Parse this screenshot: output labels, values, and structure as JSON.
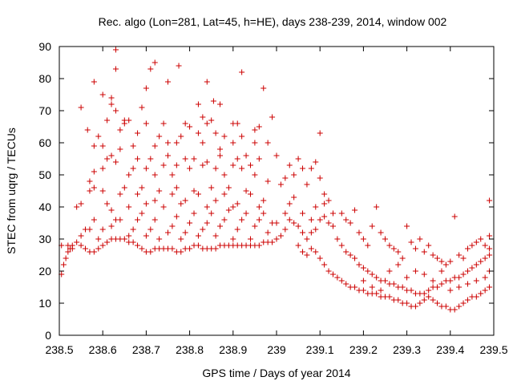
{
  "chart_data": {
    "type": "scatter",
    "title": "Rec. algo (Lon=281, Lat=45, h=HE), days 238-239, 2014, window 002",
    "xlabel": "GPS time / Days of year 2014",
    "ylabel": "STEC from uqrg / TECUs",
    "xlim": [
      238.5,
      239.5
    ],
    "ylim": [
      0,
      90
    ],
    "x_ticks": [
      238.5,
      238.6,
      238.7,
      238.8,
      238.9,
      239.0,
      239.1,
      239.2,
      239.3,
      239.4,
      239.5
    ],
    "x_tick_labels": [
      "238.5",
      "238.6",
      "238.7",
      "238.8",
      "238.9",
      "239",
      "239.1",
      "239.2",
      "239.3",
      "239.4",
      "239.5"
    ],
    "y_ticks": [
      0,
      10,
      20,
      30,
      40,
      50,
      60,
      70,
      80,
      90
    ],
    "y_tick_labels": [
      "0",
      "10",
      "20",
      "30",
      "40",
      "50",
      "60",
      "70",
      "80",
      "90"
    ],
    "grid": false,
    "legend": "none",
    "marker": "plus",
    "color": "#cc0000",
    "points": [
      [
        238.505,
        19
      ],
      [
        238.51,
        22
      ],
      [
        238.515,
        24
      ],
      [
        238.52,
        26
      ],
      [
        238.525,
        27
      ],
      [
        238.53,
        28
      ],
      [
        238.54,
        29
      ],
      [
        238.55,
        28
      ],
      [
        238.56,
        27
      ],
      [
        238.57,
        26
      ],
      [
        238.58,
        26
      ],
      [
        238.59,
        27
      ],
      [
        238.6,
        28
      ],
      [
        238.61,
        29
      ],
      [
        238.62,
        30
      ],
      [
        238.63,
        30
      ],
      [
        238.64,
        30
      ],
      [
        238.65,
        30
      ],
      [
        238.66,
        29
      ],
      [
        238.67,
        29
      ],
      [
        238.68,
        28
      ],
      [
        238.69,
        27
      ],
      [
        238.7,
        26
      ],
      [
        238.71,
        26
      ],
      [
        238.72,
        27
      ],
      [
        238.73,
        27
      ],
      [
        238.74,
        27
      ],
      [
        238.75,
        27
      ],
      [
        238.76,
        27
      ],
      [
        238.77,
        26
      ],
      [
        238.78,
        26
      ],
      [
        238.79,
        27
      ],
      [
        238.8,
        27
      ],
      [
        238.81,
        28
      ],
      [
        238.82,
        28
      ],
      [
        238.83,
        27
      ],
      [
        238.84,
        27
      ],
      [
        238.85,
        27
      ],
      [
        238.86,
        27
      ],
      [
        238.87,
        28
      ],
      [
        238.88,
        28
      ],
      [
        238.89,
        28
      ],
      [
        238.9,
        28
      ],
      [
        238.91,
        28
      ],
      [
        238.92,
        28
      ],
      [
        238.93,
        28
      ],
      [
        238.94,
        28
      ],
      [
        238.95,
        28
      ],
      [
        238.96,
        28
      ],
      [
        238.97,
        29
      ],
      [
        238.98,
        29
      ],
      [
        238.99,
        29
      ],
      [
        238.505,
        28
      ],
      [
        238.52,
        28
      ],
      [
        238.53,
        27
      ],
      [
        238.55,
        31
      ],
      [
        238.56,
        33
      ],
      [
        238.57,
        33
      ],
      [
        238.58,
        36
      ],
      [
        238.59,
        30
      ],
      [
        238.6,
        33
      ],
      [
        238.62,
        34
      ],
      [
        238.63,
        36
      ],
      [
        238.64,
        36
      ],
      [
        238.66,
        31
      ],
      [
        238.67,
        33
      ],
      [
        238.68,
        36
      ],
      [
        238.69,
        38
      ],
      [
        238.7,
        31
      ],
      [
        238.71,
        33
      ],
      [
        238.72,
        36
      ],
      [
        238.73,
        30
      ],
      [
        238.75,
        32
      ],
      [
        238.76,
        34
      ],
      [
        238.77,
        37
      ],
      [
        238.78,
        30
      ],
      [
        238.79,
        32
      ],
      [
        238.8,
        35
      ],
      [
        238.81,
        38
      ],
      [
        238.82,
        31
      ],
      [
        238.83,
        33
      ],
      [
        238.84,
        35
      ],
      [
        238.85,
        38
      ],
      [
        238.86,
        31
      ],
      [
        238.87,
        34
      ],
      [
        238.88,
        36
      ],
      [
        238.89,
        39
      ],
      [
        238.9,
        30
      ],
      [
        238.91,
        33
      ],
      [
        238.92,
        36
      ],
      [
        238.93,
        38
      ],
      [
        238.94,
        30
      ],
      [
        238.95,
        34
      ],
      [
        238.96,
        36
      ],
      [
        238.97,
        38
      ],
      [
        238.98,
        32
      ],
      [
        238.99,
        35
      ],
      [
        238.54,
        40
      ],
      [
        238.55,
        41
      ],
      [
        238.57,
        45
      ],
      [
        238.58,
        46
      ],
      [
        238.6,
        45
      ],
      [
        238.61,
        41
      ],
      [
        238.62,
        39
      ],
      [
        238.64,
        44
      ],
      [
        238.65,
        46
      ],
      [
        238.66,
        40
      ],
      [
        238.68,
        44
      ],
      [
        238.69,
        46
      ],
      [
        238.7,
        41
      ],
      [
        238.72,
        42
      ],
      [
        238.73,
        45
      ],
      [
        238.74,
        40
      ],
      [
        238.76,
        44
      ],
      [
        238.77,
        46
      ],
      [
        238.78,
        41
      ],
      [
        238.79,
        42
      ],
      [
        238.81,
        45
      ],
      [
        238.82,
        44
      ],
      [
        238.84,
        40
      ],
      [
        238.85,
        46
      ],
      [
        238.86,
        42
      ],
      [
        238.88,
        44
      ],
      [
        238.89,
        46
      ],
      [
        238.9,
        40
      ],
      [
        238.91,
        41
      ],
      [
        238.93,
        45
      ],
      [
        238.94,
        44
      ],
      [
        238.96,
        40
      ],
      [
        238.97,
        42
      ],
      [
        238.57,
        48
      ],
      [
        238.58,
        51
      ],
      [
        238.6,
        52
      ],
      [
        238.61,
        55
      ],
      [
        238.62,
        56
      ],
      [
        238.63,
        54
      ],
      [
        238.64,
        58
      ],
      [
        238.66,
        50
      ],
      [
        238.67,
        52
      ],
      [
        238.68,
        55
      ],
      [
        238.7,
        52
      ],
      [
        238.71,
        55
      ],
      [
        238.72,
        50
      ],
      [
        238.74,
        53
      ],
      [
        238.75,
        56
      ],
      [
        238.76,
        50
      ],
      [
        238.77,
        53
      ],
      [
        238.79,
        55
      ],
      [
        238.8,
        52
      ],
      [
        238.81,
        55
      ],
      [
        238.83,
        53
      ],
      [
        238.84,
        54
      ],
      [
        238.86,
        52
      ],
      [
        238.87,
        56
      ],
      [
        238.88,
        50
      ],
      [
        238.9,
        53
      ],
      [
        238.91,
        55
      ],
      [
        238.92,
        52
      ],
      [
        238.94,
        53
      ],
      [
        238.95,
        50
      ],
      [
        238.96,
        55
      ],
      [
        238.98,
        48
      ],
      [
        238.58,
        59
      ],
      [
        238.59,
        62
      ],
      [
        238.6,
        59
      ],
      [
        238.61,
        67
      ],
      [
        238.62,
        72
      ],
      [
        238.64,
        64
      ],
      [
        238.65,
        67
      ],
      [
        238.67,
        59
      ],
      [
        238.68,
        63
      ],
      [
        238.69,
        71
      ],
      [
        238.7,
        66
      ],
      [
        238.72,
        59
      ],
      [
        238.73,
        62
      ],
      [
        238.74,
        66
      ],
      [
        238.75,
        60
      ],
      [
        238.77,
        60
      ],
      [
        238.78,
        62
      ],
      [
        238.79,
        66
      ],
      [
        238.8,
        65
      ],
      [
        238.82,
        63
      ],
      [
        238.83,
        60
      ],
      [
        238.84,
        66
      ],
      [
        238.85,
        67
      ],
      [
        238.86,
        63
      ],
      [
        238.87,
        58
      ],
      [
        238.88,
        62
      ],
      [
        238.9,
        60
      ],
      [
        238.91,
        66
      ],
      [
        238.92,
        62
      ],
      [
        238.93,
        56
      ],
      [
        238.95,
        60
      ],
      [
        238.96,
        65
      ],
      [
        238.98,
        60
      ],
      [
        238.55,
        71
      ],
      [
        238.565,
        64
      ],
      [
        238.58,
        79
      ],
      [
        238.6,
        75
      ],
      [
        238.62,
        74
      ],
      [
        238.63,
        70
      ],
      [
        238.65,
        66
      ],
      [
        238.66,
        67
      ],
      [
        238.7,
        77
      ],
      [
        238.71,
        83
      ],
      [
        238.72,
        85
      ],
      [
        238.75,
        79
      ],
      [
        238.775,
        84
      ],
      [
        238.82,
        72
      ],
      [
        238.83,
        68
      ],
      [
        238.84,
        79
      ],
      [
        238.855,
        73
      ],
      [
        238.87,
        72
      ],
      [
        238.9,
        66
      ],
      [
        238.92,
        82
      ],
      [
        238.95,
        64
      ],
      [
        238.97,
        77
      ],
      [
        238.99,
        68
      ],
      [
        238.63,
        89
      ],
      [
        238.63,
        83
      ],
      [
        239.0,
        30
      ],
      [
        239.01,
        31
      ],
      [
        239.02,
        33
      ],
      [
        239.03,
        36
      ],
      [
        239.04,
        35
      ],
      [
        239.05,
        34
      ],
      [
        239.06,
        32
      ],
      [
        239.07,
        30
      ],
      [
        239.08,
        32
      ],
      [
        239.09,
        33
      ],
      [
        239.1,
        36
      ],
      [
        239.11,
        37
      ],
      [
        239.12,
        35
      ],
      [
        239.13,
        34
      ],
      [
        239.0,
        56
      ],
      [
        239.01,
        47
      ],
      [
        239.02,
        49
      ],
      [
        239.03,
        53
      ],
      [
        239.04,
        50
      ],
      [
        239.05,
        55
      ],
      [
        239.06,
        52
      ],
      [
        239.07,
        47
      ],
      [
        239.08,
        52
      ],
      [
        239.09,
        54
      ],
      [
        239.1,
        49
      ],
      [
        239.11,
        44
      ],
      [
        239.12,
        42
      ],
      [
        239.1,
        63
      ],
      [
        239.04,
        43
      ],
      [
        239.06,
        38
      ],
      [
        239.08,
        36
      ],
      [
        239.09,
        40
      ],
      [
        239.11,
        41
      ],
      [
        239.13,
        38
      ],
      [
        239.0,
        35
      ],
      [
        239.02,
        38
      ],
      [
        239.03,
        41
      ],
      [
        239.05,
        28
      ],
      [
        239.06,
        26
      ],
      [
        239.07,
        25
      ],
      [
        239.08,
        27
      ],
      [
        239.09,
        26
      ],
      [
        239.1,
        24
      ],
      [
        239.11,
        22
      ],
      [
        239.12,
        20
      ],
      [
        239.13,
        19
      ],
      [
        239.14,
        18
      ],
      [
        239.15,
        17
      ],
      [
        239.16,
        16
      ],
      [
        239.17,
        15
      ],
      [
        239.18,
        15
      ],
      [
        239.19,
        14
      ],
      [
        239.2,
        14
      ],
      [
        239.21,
        13
      ],
      [
        239.22,
        13
      ],
      [
        239.23,
        13
      ],
      [
        239.24,
        12
      ],
      [
        239.25,
        12
      ],
      [
        239.26,
        12
      ],
      [
        239.27,
        11
      ],
      [
        239.28,
        11
      ],
      [
        239.29,
        10
      ],
      [
        239.3,
        10
      ],
      [
        239.31,
        9
      ],
      [
        239.32,
        9
      ],
      [
        239.33,
        10
      ],
      [
        239.34,
        11
      ],
      [
        239.35,
        12
      ],
      [
        239.36,
        11
      ],
      [
        239.37,
        10
      ],
      [
        239.38,
        9
      ],
      [
        239.39,
        9
      ],
      [
        239.4,
        8
      ],
      [
        239.41,
        8
      ],
      [
        239.42,
        9
      ],
      [
        239.43,
        10
      ],
      [
        239.44,
        11
      ],
      [
        239.45,
        12
      ],
      [
        239.46,
        12
      ],
      [
        239.47,
        13
      ],
      [
        239.48,
        14
      ],
      [
        239.49,
        15
      ],
      [
        239.14,
        30
      ],
      [
        239.15,
        28
      ],
      [
        239.16,
        26
      ],
      [
        239.17,
        25
      ],
      [
        239.18,
        24
      ],
      [
        239.19,
        22
      ],
      [
        239.2,
        21
      ],
      [
        239.21,
        20
      ],
      [
        239.22,
        19
      ],
      [
        239.23,
        18
      ],
      [
        239.24,
        17
      ],
      [
        239.25,
        17
      ],
      [
        239.26,
        16
      ],
      [
        239.27,
        16
      ],
      [
        239.28,
        15
      ],
      [
        239.29,
        15
      ],
      [
        239.3,
        14
      ],
      [
        239.31,
        14
      ],
      [
        239.32,
        13
      ],
      [
        239.33,
        13
      ],
      [
        239.34,
        13
      ],
      [
        239.35,
        14
      ],
      [
        239.36,
        15
      ],
      [
        239.37,
        15
      ],
      [
        239.38,
        16
      ],
      [
        239.39,
        17
      ],
      [
        239.4,
        17
      ],
      [
        239.41,
        18
      ],
      [
        239.42,
        18
      ],
      [
        239.43,
        19
      ],
      [
        239.44,
        20
      ],
      [
        239.45,
        21
      ],
      [
        239.46,
        22
      ],
      [
        239.47,
        23
      ],
      [
        239.48,
        24
      ],
      [
        239.49,
        25
      ],
      [
        239.15,
        38
      ],
      [
        239.16,
        36
      ],
      [
        239.17,
        35
      ],
      [
        239.18,
        39
      ],
      [
        239.19,
        32
      ],
      [
        239.2,
        30
      ],
      [
        239.21,
        28
      ],
      [
        239.22,
        34
      ],
      [
        239.23,
        40
      ],
      [
        239.24,
        32
      ],
      [
        239.25,
        30
      ],
      [
        239.26,
        28
      ],
      [
        239.27,
        27
      ],
      [
        239.28,
        26
      ],
      [
        239.29,
        24
      ],
      [
        239.3,
        34
      ],
      [
        239.31,
        29
      ],
      [
        239.32,
        27
      ],
      [
        239.33,
        30
      ],
      [
        239.34,
        26
      ],
      [
        239.35,
        28
      ],
      [
        239.36,
        25
      ],
      [
        239.37,
        24
      ],
      [
        239.38,
        23
      ],
      [
        239.39,
        22
      ],
      [
        239.4,
        23
      ],
      [
        239.41,
        37
      ],
      [
        239.42,
        25
      ],
      [
        239.43,
        24
      ],
      [
        239.44,
        27
      ],
      [
        239.45,
        28
      ],
      [
        239.46,
        29
      ],
      [
        239.47,
        30
      ],
      [
        239.48,
        28
      ],
      [
        239.49,
        42
      ],
      [
        239.49,
        31
      ],
      [
        239.49,
        27
      ],
      [
        239.2,
        17
      ],
      [
        239.22,
        15
      ],
      [
        239.24,
        14
      ],
      [
        239.26,
        20
      ],
      [
        239.28,
        22
      ],
      [
        239.3,
        18
      ],
      [
        239.32,
        20
      ],
      [
        239.34,
        19
      ],
      [
        239.36,
        17
      ],
      [
        239.38,
        20
      ],
      [
        239.4,
        14
      ],
      [
        239.42,
        15
      ],
      [
        239.44,
        16
      ],
      [
        239.46,
        17
      ],
      [
        239.48,
        18
      ],
      [
        239.49,
        20
      ]
    ]
  }
}
